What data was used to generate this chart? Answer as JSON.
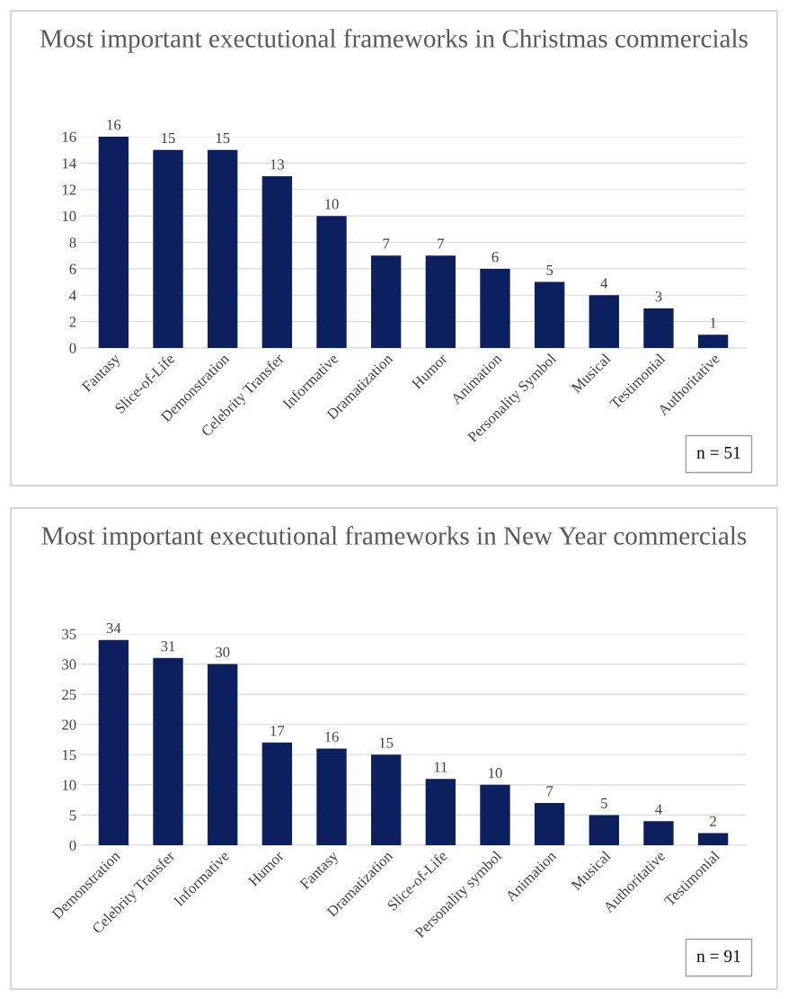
{
  "chart_data": [
    {
      "type": "bar",
      "title": "Most important exectutional frameworks in Christmas commercials",
      "categories": [
        "Fantasy",
        "Slice-of-Life",
        "Demonstration",
        "Celebrity Transfer",
        "Informative",
        "Dramatization",
        "Humor",
        "Animation",
        "Personality Symbol",
        "Musical",
        "Testimonial",
        "Authoritative"
      ],
      "values": [
        16,
        15,
        15,
        13,
        10,
        7,
        7,
        6,
        5,
        4,
        3,
        1
      ],
      "color": "#0c1f5e",
      "ylim": [
        0,
        16
      ],
      "yticks": [
        0,
        2,
        4,
        6,
        8,
        10,
        12,
        14,
        16
      ],
      "grid": "y",
      "data_labels": true,
      "annotations": [
        "n = 51"
      ]
    },
    {
      "type": "bar",
      "title": "Most important exectutional frameworks in New Year commercials",
      "categories": [
        "Demonstration",
        "Celebrity Transfer",
        "Informative",
        "Humor",
        "Fantasy",
        "Dramatization",
        "Slice-of-Life",
        "Personality symbol",
        "Animation",
        "Musical",
        "Authoritative",
        "Testimonial"
      ],
      "values": [
        34,
        31,
        30,
        17,
        16,
        15,
        11,
        10,
        7,
        5,
        4,
        2
      ],
      "color": "#0c1f5e",
      "ylim": [
        0,
        35
      ],
      "yticks": [
        0,
        5,
        10,
        15,
        20,
        25,
        30,
        35
      ],
      "grid": "y",
      "data_labels": true,
      "annotations": [
        "n = 91"
      ]
    }
  ]
}
